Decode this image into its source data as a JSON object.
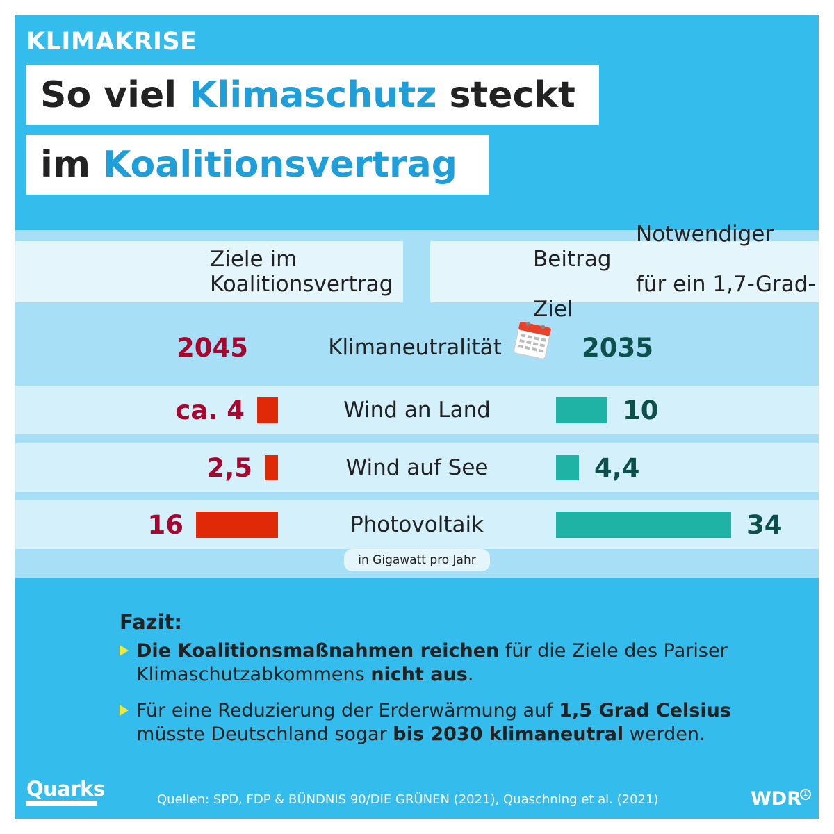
{
  "kicker": "KLIMAKRISE",
  "title": {
    "line1_a": "So viel ",
    "line1_b": "Klimaschutz",
    "line1_c": " steckt",
    "line2_a": "im ",
    "line2_b": "Koalitionsvertrag"
  },
  "header": {
    "left_line1": "Ziele im",
    "left_line2": "Koalitionsvertrag",
    "right_line1": "Notwendiger Beitrag",
    "right_line2": "für ein 1,7-Grad-Ziel"
  },
  "chart_data": {
    "type": "bar",
    "unit": "in Gigawatt pro Jahr",
    "categories": [
      "Klimaneutralität",
      "Wind an Land",
      "Wind auf See",
      "Photovoltaik"
    ],
    "series": [
      {
        "name": "Ziele im Koalitionsvertrag",
        "labels": [
          "2045",
          "ca. 4",
          "2,5",
          "16"
        ],
        "values": [
          null,
          4,
          2.5,
          16
        ],
        "color": "#e02906"
      },
      {
        "name": "Notwendiger Beitrag für ein 1,7-Grad-Ziel",
        "labels": [
          "2035",
          "10",
          "4,4",
          "34"
        ],
        "values": [
          null,
          10,
          4.4,
          34
        ],
        "color": "#1eb3a4"
      }
    ]
  },
  "fazit": {
    "title": "Fazit:",
    "b1_bold1": "Die Koalitionsmaßnahmen reichen",
    "b1_text1": " für die Ziele des Pariser Klimaschutzabkommens ",
    "b1_bold2": "nicht aus",
    "b1_text2": ".",
    "b2_text1": "Für eine Reduzierung der Erderwärmung auf ",
    "b2_bold1": "1,5 Grad Celsius",
    "b2_text2": " müsste Deutschland sogar ",
    "b2_bold2": "bis 2030 klimaneutral",
    "b2_text3": " werden."
  },
  "footer": {
    "brand": "Quarks",
    "source": "Quellen: SPD, FDP & BÜNDNIS 90/DIE GRÜNEN (2021), Quaschning et al. (2021)",
    "logo": "WDR",
    "logo_mark": "1"
  },
  "colors": {
    "background": "#34bdec",
    "panel": "#a7e0f6",
    "left_bar": "#e02906",
    "right_bar": "#1eb3a4",
    "left_value": "#a8062f",
    "right_value": "#0c4f4b",
    "highlight": "#1f9fd9"
  },
  "icons": {
    "calendar": "calendar-icon",
    "bullet": "triangle-bullet-icon"
  }
}
